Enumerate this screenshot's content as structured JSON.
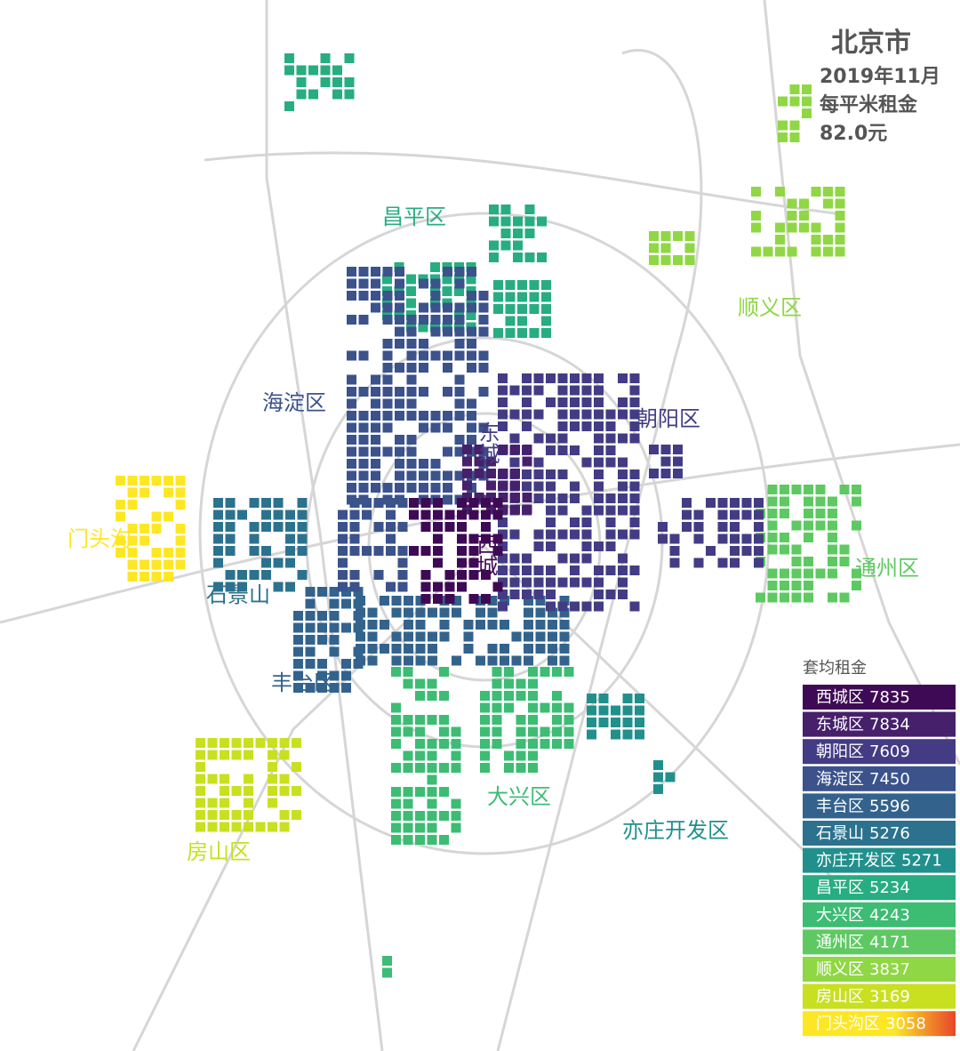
{
  "header": {
    "title": "北京市",
    "date": "2019年11月",
    "metric": "每平米租金",
    "value": "82.0元"
  },
  "district_labels": [
    "昌平区",
    "顺义区",
    "海淀区",
    "朝阳区",
    "东城",
    "西城",
    "门头沟",
    "通州区",
    "石景山",
    "丰台区",
    "大兴区",
    "亦庄开发区",
    "房山区"
  ],
  "legend": {
    "title": "套均租金",
    "items": [
      {
        "name": "西城区",
        "value": 7835,
        "color": "#3f0a55"
      },
      {
        "name": "东城区",
        "value": 7834,
        "color": "#46206a"
      },
      {
        "name": "朝阳区",
        "value": 7609,
        "color": "#433c84"
      },
      {
        "name": "海淀区",
        "value": 7450,
        "color": "#3b528b"
      },
      {
        "name": "丰台区",
        "value": 5596,
        "color": "#33638d"
      },
      {
        "name": "石景山",
        "value": 5276,
        "color": "#2c728e"
      },
      {
        "name": "亦庄开发区",
        "value": 5271,
        "color": "#21908d"
      },
      {
        "name": "昌平区",
        "value": 5234,
        "color": "#27ad81"
      },
      {
        "name": "大兴区",
        "value": 4243,
        "color": "#3dbc74"
      },
      {
        "name": "通州区",
        "value": 4171,
        "color": "#5ec962"
      },
      {
        "name": "顺义区",
        "value": 3837,
        "color": "#8fd744"
      },
      {
        "name": "房山区",
        "value": 3169,
        "color": "#c8e020"
      },
      {
        "name": "门头沟区",
        "value": 3058,
        "color": "#fde725"
      }
    ]
  }
}
